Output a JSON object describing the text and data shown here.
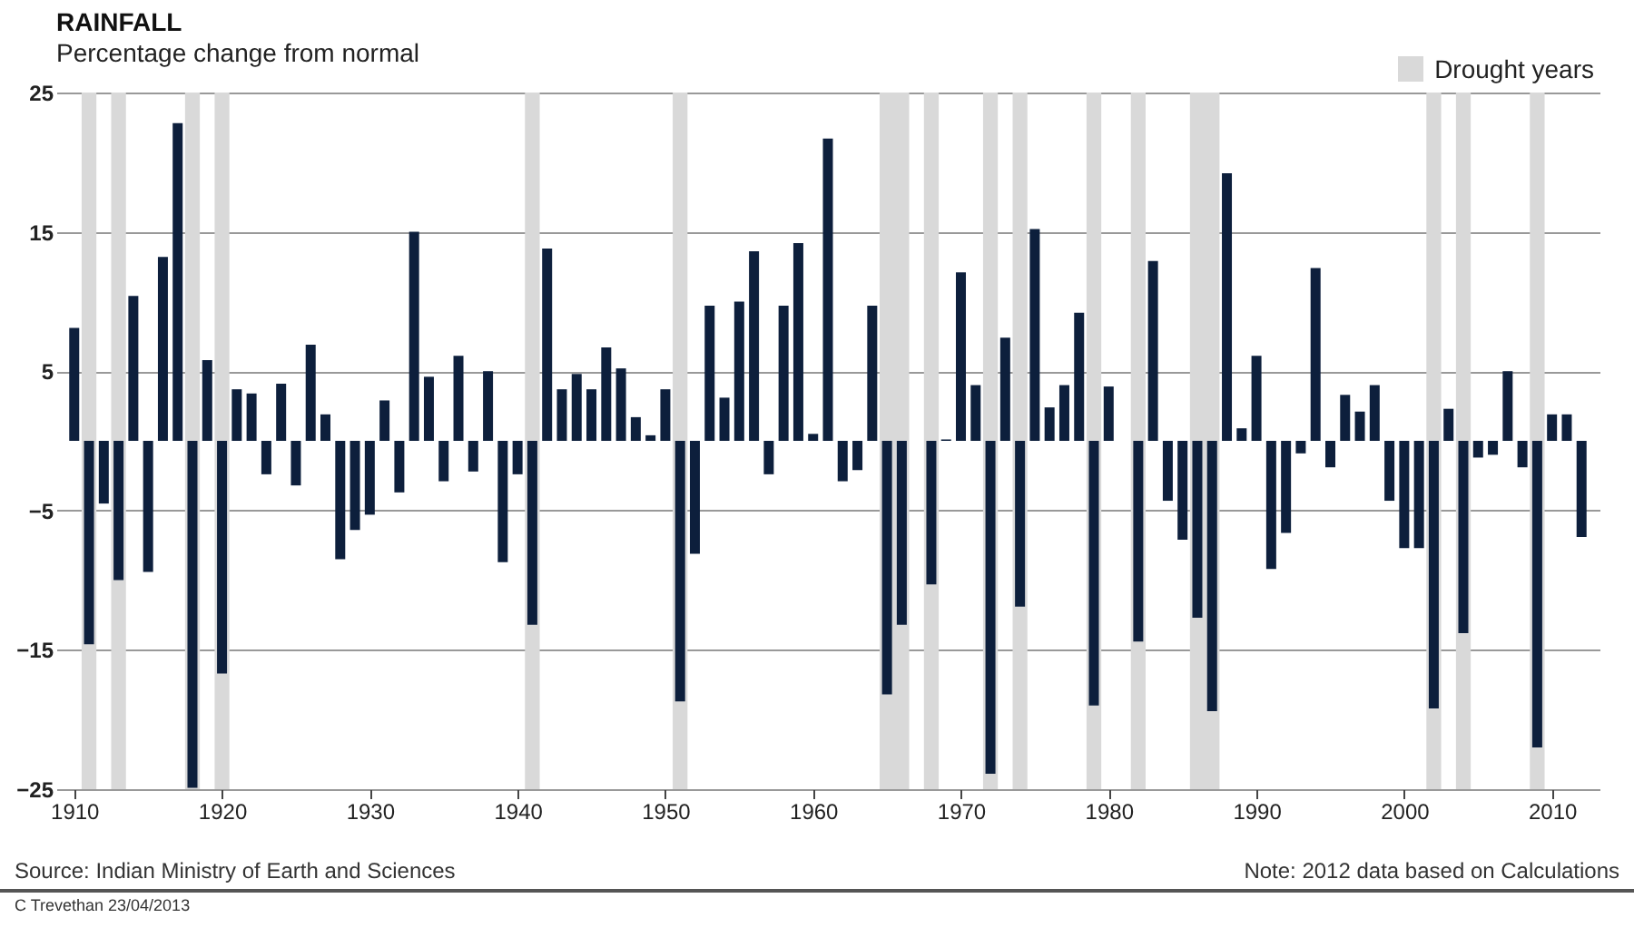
{
  "chart_data": {
    "type": "bar",
    "title": "RAINFALL",
    "subtitle": "Percentage change from normal",
    "x": [
      1910,
      1911,
      1912,
      1913,
      1914,
      1915,
      1916,
      1917,
      1918,
      1919,
      1920,
      1921,
      1922,
      1923,
      1924,
      1925,
      1926,
      1927,
      1928,
      1929,
      1930,
      1931,
      1932,
      1933,
      1934,
      1935,
      1936,
      1937,
      1938,
      1939,
      1940,
      1941,
      1942,
      1943,
      1944,
      1945,
      1946,
      1947,
      1948,
      1949,
      1950,
      1951,
      1952,
      1953,
      1954,
      1955,
      1956,
      1957,
      1958,
      1959,
      1960,
      1961,
      1962,
      1963,
      1964,
      1965,
      1966,
      1967,
      1968,
      1969,
      1970,
      1971,
      1972,
      1973,
      1974,
      1975,
      1976,
      1977,
      1978,
      1979,
      1980,
      1981,
      1982,
      1983,
      1984,
      1985,
      1986,
      1987,
      1988,
      1989,
      1990,
      1991,
      1992,
      1993,
      1994,
      1995,
      1996,
      1997,
      1998,
      1999,
      2000,
      2001,
      2002,
      2003,
      2004,
      2005,
      2006,
      2007,
      2008,
      2009,
      2010,
      2011,
      2012
    ],
    "values": [
      8.1,
      -14.6,
      -4.5,
      -10,
      10.4,
      -9.4,
      13.2,
      22.8,
      -24.9,
      5.8,
      -16.7,
      3.7,
      3.4,
      -2.4,
      4.1,
      -3.2,
      6.9,
      1.9,
      -8.5,
      -6.4,
      -5.3,
      2.9,
      -3.7,
      15,
      4.6,
      -2.9,
      6.1,
      -2.2,
      5,
      -8.7,
      -2.4,
      -13.2,
      13.8,
      3.7,
      4.8,
      3.7,
      6.7,
      5.2,
      1.7,
      0.4,
      3.7,
      -18.7,
      -8.1,
      9.7,
      3.1,
      10,
      13.6,
      -2.4,
      9.7,
      14.2,
      0.5,
      21.7,
      -2.9,
      -2.1,
      9.7,
      -18.2,
      -13.2,
      0,
      -10.3,
      0.1,
      12.1,
      4,
      -23.9,
      7.4,
      -11.9,
      15.2,
      2.4,
      4,
      9.2,
      -19,
      3.9,
      0,
      -14.4,
      12.9,
      -4.3,
      -7.1,
      -12.7,
      -19.4,
      19.2,
      0.9,
      6.1,
      -9.2,
      -6.6,
      -0.9,
      12.4,
      -1.9,
      3.3,
      2.1,
      4,
      -4.3,
      -7.7,
      -7.7,
      -19.2,
      2.3,
      -13.8,
      -1.2,
      -1,
      5,
      -1.9,
      -22,
      1.9,
      1.9,
      -6.9
    ],
    "color": "#0d1f3c",
    "xlim": [
      1909.4,
      2012.6
    ],
    "xticks": [
      1910,
      1920,
      1930,
      1940,
      1950,
      1960,
      1970,
      1980,
      1990,
      2000,
      2010
    ],
    "ylim": [
      -25,
      25
    ],
    "yticks": [
      -25,
      -15,
      -5,
      5,
      15,
      25
    ],
    "grid": "y",
    "legend": "top right",
    "bands": [
      {
        "axis": "x",
        "from": 1910.5,
        "to": 1911.5,
        "label": "Drought years",
        "color": "#d9d9d9"
      },
      {
        "axis": "x",
        "from": 1912.5,
        "to": 1913.5,
        "color": "#d9d9d9"
      },
      {
        "axis": "x",
        "from": 1917.5,
        "to": 1918.5,
        "color": "#d9d9d9"
      },
      {
        "axis": "x",
        "from": 1919.5,
        "to": 1920.5,
        "color": "#d9d9d9"
      },
      {
        "axis": "x",
        "from": 1940.5,
        "to": 1941.5,
        "color": "#d9d9d9"
      },
      {
        "axis": "x",
        "from": 1950.5,
        "to": 1951.5,
        "color": "#d9d9d9"
      },
      {
        "axis": "x",
        "from": 1964.5,
        "to": 1966.5,
        "color": "#d9d9d9"
      },
      {
        "axis": "x",
        "from": 1967.5,
        "to": 1968.5,
        "color": "#d9d9d9"
      },
      {
        "axis": "x",
        "from": 1971.5,
        "to": 1972.5,
        "color": "#d9d9d9"
      },
      {
        "axis": "x",
        "from": 1973.5,
        "to": 1974.5,
        "color": "#d9d9d9"
      },
      {
        "axis": "x",
        "from": 1978.5,
        "to": 1979.5,
        "color": "#d9d9d9"
      },
      {
        "axis": "x",
        "from": 1981.5,
        "to": 1982.5,
        "color": "#d9d9d9"
      },
      {
        "axis": "x",
        "from": 1985.5,
        "to": 1987.5,
        "color": "#d9d9d9"
      },
      {
        "axis": "x",
        "from": 2001.5,
        "to": 2002.5,
        "color": "#d9d9d9"
      },
      {
        "axis": "x",
        "from": 2003.5,
        "to": 2004.5,
        "color": "#d9d9d9"
      },
      {
        "axis": "x",
        "from": 2008.5,
        "to": 2009.5,
        "color": "#d9d9d9"
      }
    ],
    "annotations": [
      "Source:  Indian Ministry of Earth and Sciences",
      "Note: 2012 data based on Calculations",
      "C Trevethan   23/04/2013"
    ]
  }
}
